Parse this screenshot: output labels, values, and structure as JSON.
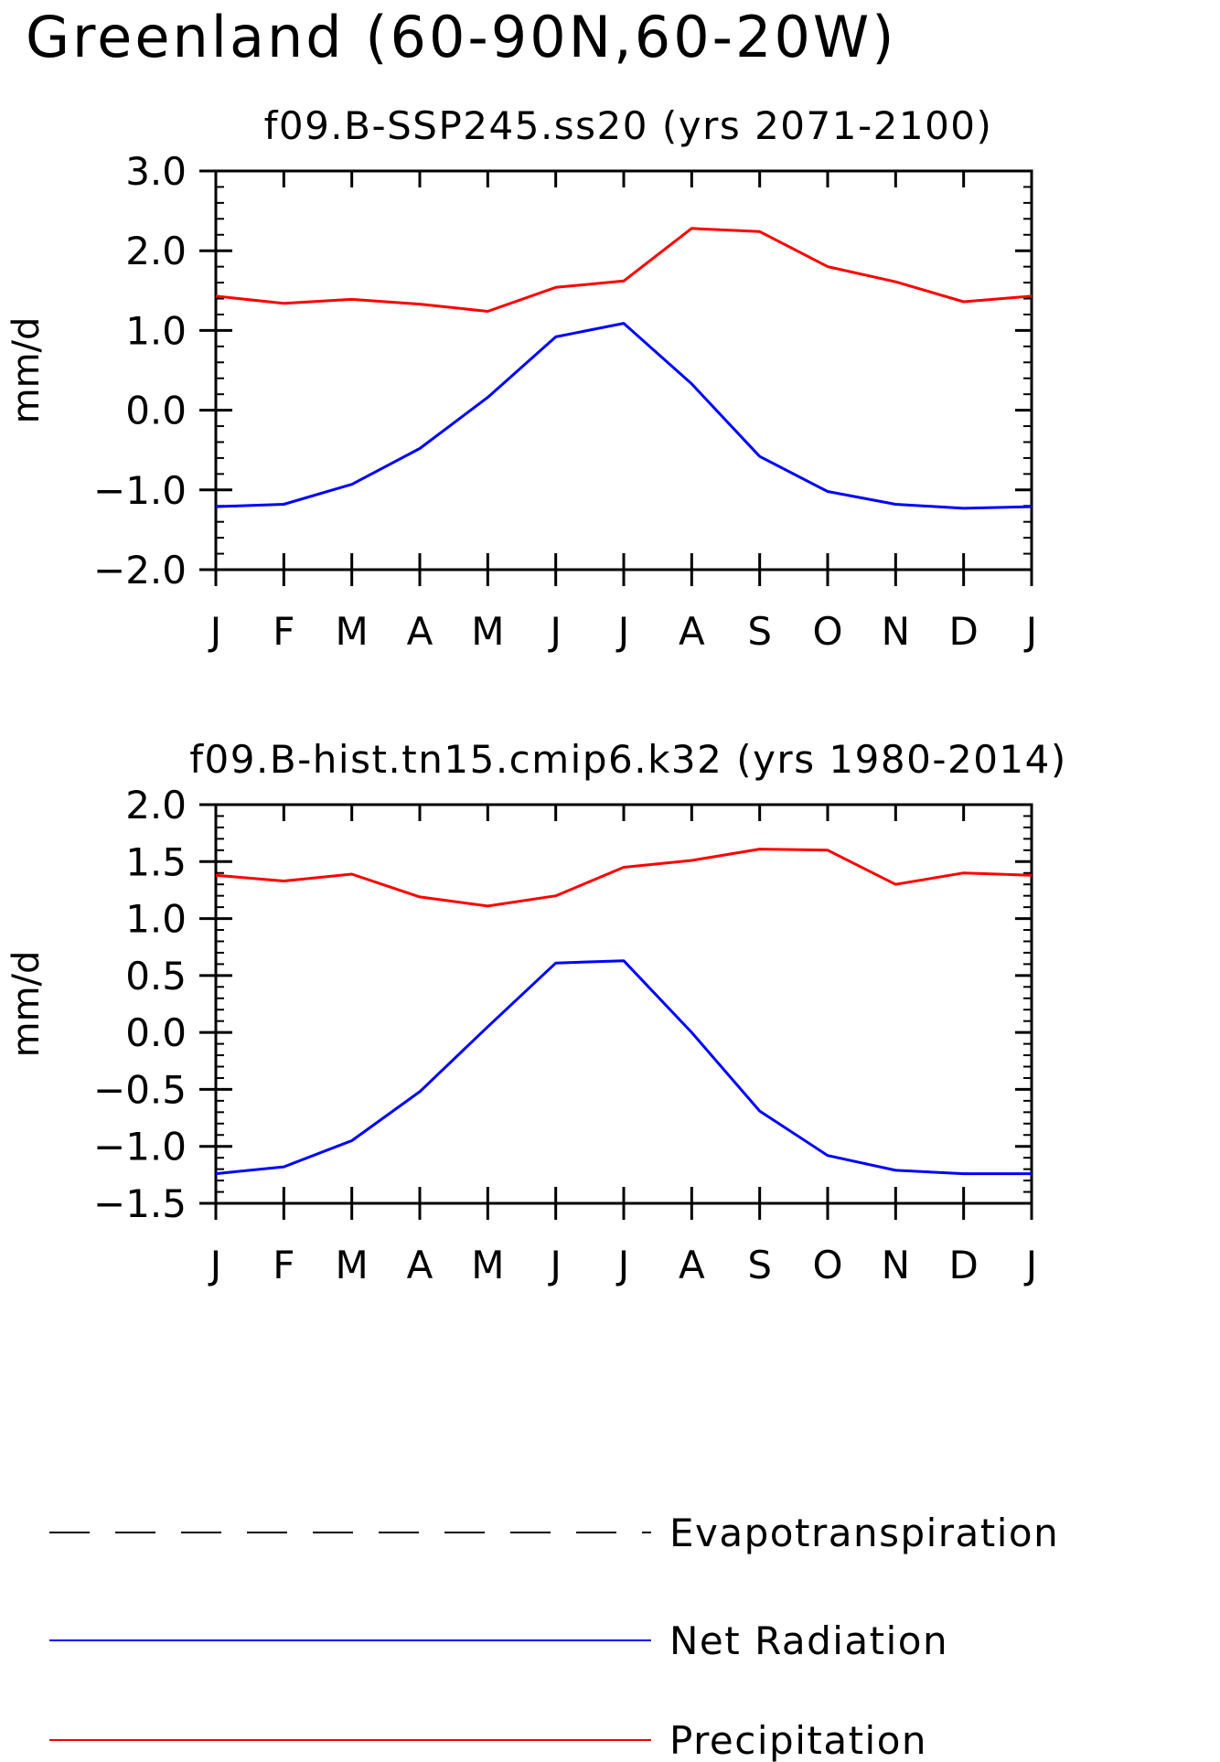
{
  "page_title": "Greenland (60-90N,60-20W)",
  "chart_data": [
    {
      "type": "line",
      "title": "f09.B-SSP245.ss20 (yrs 2071-2100)",
      "xlabel": "",
      "ylabel": "mm/d",
      "categories": [
        "J",
        "F",
        "M",
        "A",
        "M",
        "J",
        "J",
        "A",
        "S",
        "O",
        "N",
        "D",
        "J"
      ],
      "ylim": [
        -2.0,
        3.0
      ],
      "yticks": [
        -2.0,
        -1.0,
        0.0,
        1.0,
        2.0,
        3.0
      ],
      "ytick_labels": [
        "−2.0",
        "−1.0",
        "0.0",
        "1.0",
        "2.0",
        "3.0"
      ],
      "yminor_step": 0.2,
      "series": [
        {
          "name": "Precipitation",
          "color": "#ff0000",
          "values": [
            1.43,
            1.34,
            1.39,
            1.33,
            1.24,
            1.54,
            1.62,
            2.28,
            2.24,
            1.8,
            1.61,
            1.36,
            1.43
          ]
        },
        {
          "name": "Net Radiation",
          "color": "#0000ff",
          "values": [
            -1.21,
            -1.18,
            -0.93,
            -0.48,
            0.16,
            0.92,
            1.09,
            0.33,
            -0.58,
            -1.02,
            -1.18,
            -1.23,
            -1.21
          ]
        }
      ],
      "grid": false
    },
    {
      "type": "line",
      "title": "f09.B-hist.tn15.cmip6.k32 (yrs 1980-2014)",
      "xlabel": "",
      "ylabel": "mm/d",
      "categories": [
        "J",
        "F",
        "M",
        "A",
        "M",
        "J",
        "J",
        "A",
        "S",
        "O",
        "N",
        "D",
        "J"
      ],
      "ylim": [
        -1.5,
        2.0
      ],
      "yticks": [
        -1.5,
        -1.0,
        -0.5,
        0.0,
        0.5,
        1.0,
        1.5,
        2.0
      ],
      "ytick_labels": [
        "−1.5",
        "−1.0",
        "−0.5",
        "0.0",
        "0.5",
        "1.0",
        "1.5",
        "2.0"
      ],
      "yminor_step": 0.1,
      "series": [
        {
          "name": "Precipitation",
          "color": "#ff0000",
          "values": [
            1.38,
            1.33,
            1.39,
            1.19,
            1.11,
            1.2,
            1.45,
            1.51,
            1.61,
            1.6,
            1.3,
            1.4,
            1.38
          ]
        },
        {
          "name": "Net Radiation",
          "color": "#0000ff",
          "values": [
            -1.24,
            -1.18,
            -0.95,
            -0.52,
            0.05,
            0.61,
            0.63,
            0.0,
            -0.69,
            -1.08,
            -1.21,
            -1.24,
            -1.24
          ]
        }
      ],
      "grid": false
    }
  ],
  "legend": {
    "placement": "bottom",
    "items": [
      {
        "label": "Evapotranspiration",
        "color": "#000000",
        "style": "dashed"
      },
      {
        "label": "Net Radiation",
        "color": "#0000ff",
        "style": "solid"
      },
      {
        "label": "Precipitation",
        "color": "#ff0000",
        "style": "solid"
      }
    ]
  }
}
